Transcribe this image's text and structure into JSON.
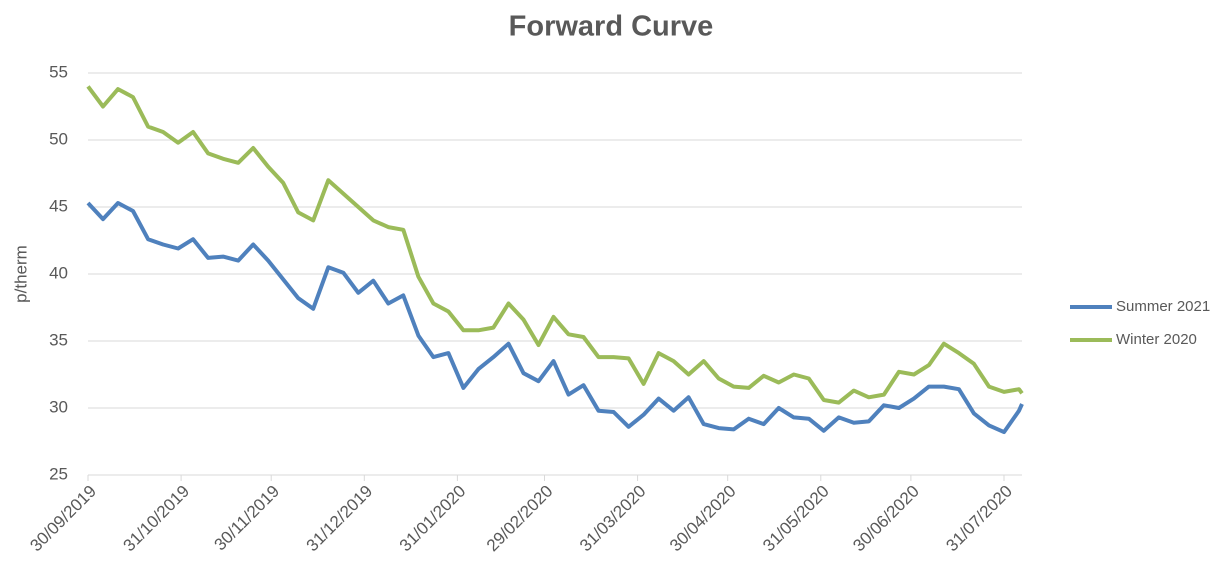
{
  "chart_data": {
    "type": "line",
    "title": "Forward Curve",
    "y_label": "p/therm",
    "x": [
      "2019-09-30",
      "2019-10-05",
      "2019-10-10",
      "2019-10-15",
      "2019-10-20",
      "2019-10-25",
      "2019-10-30",
      "2019-11-04",
      "2019-11-09",
      "2019-11-14",
      "2019-11-19",
      "2019-11-24",
      "2019-11-29",
      "2019-12-04",
      "2019-12-09",
      "2019-12-14",
      "2019-12-19",
      "2019-12-24",
      "2019-12-29",
      "2020-01-03",
      "2020-01-08",
      "2020-01-13",
      "2020-01-18",
      "2020-01-23",
      "2020-01-28",
      "2020-02-02",
      "2020-02-07",
      "2020-02-12",
      "2020-02-17",
      "2020-02-22",
      "2020-02-27",
      "2020-03-03",
      "2020-03-08",
      "2020-03-13",
      "2020-03-18",
      "2020-03-23",
      "2020-03-28",
      "2020-04-02",
      "2020-04-07",
      "2020-04-12",
      "2020-04-17",
      "2020-04-22",
      "2020-04-27",
      "2020-05-02",
      "2020-05-07",
      "2020-05-12",
      "2020-05-17",
      "2020-05-22",
      "2020-05-27",
      "2020-06-01",
      "2020-06-06",
      "2020-06-11",
      "2020-06-16",
      "2020-06-21",
      "2020-06-26",
      "2020-07-01",
      "2020-07-06",
      "2020-07-11",
      "2020-07-16",
      "2020-07-21",
      "2020-07-26",
      "2020-07-31",
      "2020-08-05",
      "2020-08-06"
    ],
    "series": [
      {
        "name": "Summer 2021",
        "color": "#4f81bd",
        "values": [
          45.3,
          44.1,
          45.3,
          44.7,
          42.6,
          42.2,
          41.9,
          42.6,
          41.2,
          41.3,
          41,
          42.2,
          41,
          39.6,
          38.2,
          37.4,
          40.5,
          40.1,
          38.6,
          39.5,
          37.8,
          38.4,
          35.4,
          33.8,
          34.1,
          31.5,
          32.9,
          33.8,
          34.8,
          32.6,
          32,
          33.5,
          31,
          31.7,
          29.8,
          29.7,
          28.6,
          29.5,
          30.7,
          29.8,
          30.8,
          28.8,
          28.5,
          28.4,
          29.2,
          28.8,
          30,
          29.3,
          29.2,
          28.3,
          29.3,
          28.9,
          29,
          30.2,
          30,
          30.7,
          31.6,
          31.6,
          31.4,
          29.6,
          28.7,
          28.2,
          29.8,
          30.3
        ]
      },
      {
        "name": "Winter 2020",
        "color": "#9bbb59",
        "values": [
          54,
          52.5,
          53.8,
          53.2,
          51,
          50.6,
          49.8,
          50.6,
          49,
          48.6,
          48.3,
          49.4,
          48,
          46.8,
          44.6,
          44,
          47,
          46,
          45,
          44,
          43.5,
          43.3,
          39.8,
          37.8,
          37.2,
          35.8,
          35.8,
          36,
          37.8,
          36.6,
          34.7,
          36.8,
          35.5,
          35.3,
          33.8,
          33.8,
          33.7,
          31.8,
          34.1,
          33.5,
          32.5,
          33.5,
          32.2,
          31.6,
          31.5,
          32.4,
          31.9,
          32.5,
          32.2,
          30.6,
          30.4,
          31.3,
          30.8,
          31,
          32.7,
          32.5,
          33.2,
          34.8,
          34.1,
          33.3,
          31.6,
          31.2,
          31.4,
          31.1
        ]
      }
    ],
    "xlim": [
      "2019-09-30",
      "2020-08-06"
    ],
    "xticks": [
      {
        "value": "2019-09-30",
        "label": "30/09/2019"
      },
      {
        "value": "2019-10-31",
        "label": "31/10/2019"
      },
      {
        "value": "2019-11-30",
        "label": "30/11/2019"
      },
      {
        "value": "2019-12-31",
        "label": "31/12/2019"
      },
      {
        "value": "2020-01-31",
        "label": "31/01/2020"
      },
      {
        "value": "2020-02-29",
        "label": "29/02/2020"
      },
      {
        "value": "2020-03-31",
        "label": "31/03/2020"
      },
      {
        "value": "2020-04-30",
        "label": "30/04/2020"
      },
      {
        "value": "2020-05-31",
        "label": "31/05/2020"
      },
      {
        "value": "2020-06-30",
        "label": "30/06/2020"
      },
      {
        "value": "2020-07-31",
        "label": "31/07/2020"
      }
    ],
    "ylim": [
      25,
      55
    ],
    "yticks": [
      25,
      30,
      35,
      40,
      45,
      50,
      55
    ],
    "grid": true,
    "legend": "right"
  }
}
